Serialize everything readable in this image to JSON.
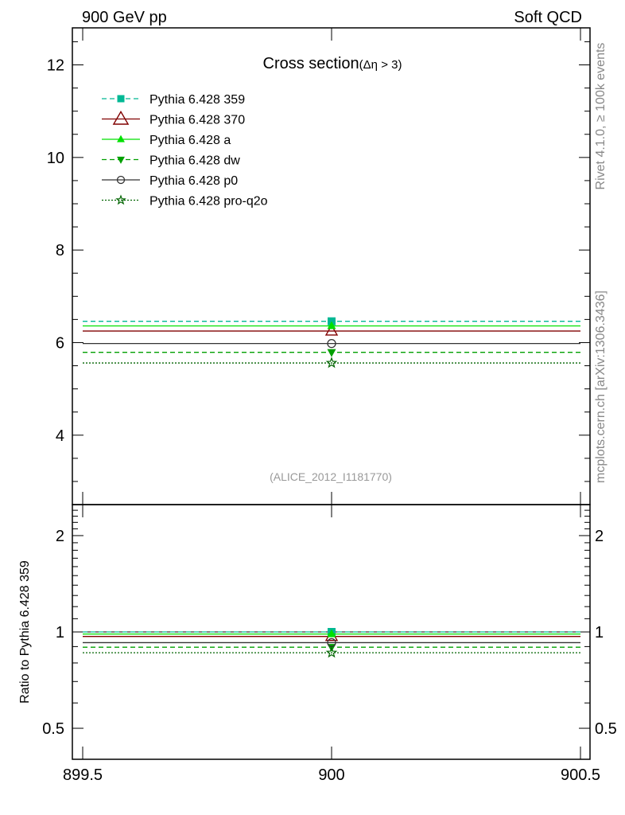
{
  "header": {
    "left": "900 GeV pp",
    "right": "Soft QCD"
  },
  "side_text": {
    "rivet": "Rivet 4.1.0, ≥ 100k events",
    "mcplots": "mcplots.cern.ch [arXiv:1306.3436]"
  },
  "chart_data": [
    {
      "type": "line",
      "title": "Cross section",
      "title_suffix": "(Δη > 3)",
      "analysis_label": "(ALICE_2012_I1181770)",
      "xlim": [
        899.5,
        900.5
      ],
      "ylim": [
        2.5,
        12.8
      ],
      "yticks": [
        4,
        6,
        8,
        10,
        12
      ],
      "ytick_labels": [
        "4",
        "6",
        "8",
        "10",
        "12"
      ],
      "legend_position": "top-left",
      "series": [
        {
          "name": "Pythia 6.428 359",
          "x": [
            899.5,
            900.5
          ],
          "y": [
            6.46,
            6.46
          ],
          "marker_x": 900,
          "color": "#00b894",
          "dash": "6,4",
          "marker": "square-filled"
        },
        {
          "name": "Pythia 6.428 370",
          "x": [
            899.5,
            900.5
          ],
          "y": [
            6.25,
            6.25
          ],
          "marker_x": 900,
          "color": "#800000",
          "dash": "",
          "marker": "triangle-open"
        },
        {
          "name": "Pythia 6.428 a",
          "x": [
            899.5,
            900.5
          ],
          "y": [
            6.36,
            6.36
          ],
          "marker_x": 900,
          "color": "#00e000",
          "dash": "",
          "marker": "triangle-filled"
        },
        {
          "name": "Pythia 6.428 dw",
          "x": [
            899.5,
            900.5
          ],
          "y": [
            5.79,
            5.79
          ],
          "marker_x": 900,
          "color": "#00a000",
          "dash": "6,4",
          "marker": "triangle-down-filled"
        },
        {
          "name": "Pythia 6.428 p0",
          "x": [
            899.5,
            900.5
          ],
          "y": [
            5.98,
            5.98
          ],
          "marker_x": 900,
          "color": "#333333",
          "dash": "",
          "marker": "circle-open"
        },
        {
          "name": "Pythia 6.428 pro-q2o",
          "x": [
            899.5,
            900.5
          ],
          "y": [
            5.56,
            5.56
          ],
          "marker_x": 900,
          "color": "#006400",
          "dash": "2,2",
          "marker": "star-open"
        }
      ]
    },
    {
      "type": "line",
      "ylabel": "Ratio to Pythia 6.428 359",
      "xlim": [
        899.5,
        900.5
      ],
      "ylim": [
        0.4,
        2.5
      ],
      "yscale": "log",
      "xticks": [
        899.5,
        900,
        900.5
      ],
      "xtick_labels": [
        "899.5",
        "900",
        "900.5"
      ],
      "yticks": [
        0.5,
        1,
        2
      ],
      "ytick_labels": [
        "0.5",
        "1",
        "2"
      ],
      "series": [
        {
          "ref": "Pythia 6.428 359",
          "x": [
            899.5,
            900.5
          ],
          "y": [
            1.0,
            1.0
          ],
          "color": "#00b894",
          "dash": "6,4",
          "marker": "square-filled"
        },
        {
          "ref": "Pythia 6.428 370",
          "x": [
            899.5,
            900.5
          ],
          "y": [
            0.968,
            0.968
          ],
          "color": "#800000",
          "dash": "",
          "marker": "triangle-open"
        },
        {
          "ref": "Pythia 6.428 a",
          "x": [
            899.5,
            900.5
          ],
          "y": [
            0.985,
            0.985
          ],
          "color": "#00e000",
          "dash": "",
          "marker": "triangle-filled"
        },
        {
          "ref": "Pythia 6.428 dw",
          "x": [
            899.5,
            900.5
          ],
          "y": [
            0.896,
            0.896
          ],
          "color": "#00a000",
          "dash": "6,4",
          "marker": "triangle-down-filled"
        },
        {
          "ref": "Pythia 6.428 p0",
          "x": [
            899.5,
            900.5
          ],
          "y": [
            0.926,
            0.926
          ],
          "color": "#333333",
          "dash": "",
          "marker": "circle-open"
        },
        {
          "ref": "Pythia 6.428 pro-q2o",
          "x": [
            899.5,
            900.5
          ],
          "y": [
            0.861,
            0.861
          ],
          "color": "#006400",
          "dash": "2,2",
          "marker": "star-open"
        }
      ]
    }
  ]
}
